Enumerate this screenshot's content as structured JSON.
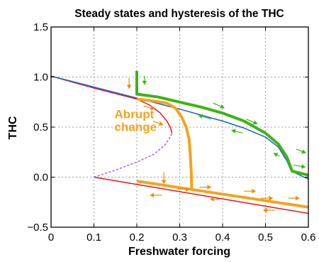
{
  "chart_data": {
    "type": "line",
    "title": "Steady states and hysteresis of the THC",
    "xlabel": "Freshwater forcing",
    "ylabel": "THC",
    "xlim": [
      0,
      0.6
    ],
    "ylim": [
      -0.5,
      1.5
    ],
    "xticks": [
      0,
      0.1,
      0.2,
      0.3,
      0.4,
      0.5,
      0.6
    ],
    "xtick_labels": [
      "0",
      "0.1",
      "0.2",
      "0.3",
      "0.4",
      "0.5",
      "0.6"
    ],
    "yticks": [
      -0.5,
      0,
      0.5,
      1.0,
      1.5
    ],
    "ytick_labels": [
      "−0.5",
      "0.0",
      "0.5",
      "1.0",
      "1.5"
    ],
    "grid": true,
    "colors": {
      "red": "#e8141e",
      "blue": "#1f5fd0",
      "purple": "#a857e6",
      "orange": "#f5a31a",
      "green": "#3cb414",
      "arrow_orange": "#f08c00",
      "annotation": "#f5a31a"
    },
    "series": [
      {
        "color": "red",
        "width": 1.5,
        "dash": false,
        "points": [
          [
            0,
            1.01
          ],
          [
            0.05,
            0.95
          ],
          [
            0.1,
            0.89
          ],
          [
            0.15,
            0.835
          ],
          [
            0.2,
            0.78
          ],
          [
            0.23,
            0.72
          ],
          [
            0.255,
            0.64
          ],
          [
            0.27,
            0.56
          ],
          [
            0.278,
            0.5
          ],
          [
            0.282,
            0.44
          ]
        ]
      },
      {
        "color": "red",
        "width": 1.5,
        "dash": false,
        "points": [
          [
            0.1,
            0.0
          ],
          [
            0.2,
            -0.072
          ],
          [
            0.3,
            -0.145
          ],
          [
            0.4,
            -0.217
          ],
          [
            0.5,
            -0.29
          ],
          [
            0.6,
            -0.362
          ]
        ]
      },
      {
        "color": "purple",
        "width": 1.5,
        "dash": true,
        "points": [
          [
            0.1,
            0.0
          ],
          [
            0.15,
            0.07
          ],
          [
            0.2,
            0.15
          ],
          [
            0.24,
            0.23
          ],
          [
            0.265,
            0.32
          ],
          [
            0.278,
            0.4
          ],
          [
            0.282,
            0.44
          ]
        ]
      },
      {
        "color": "blue",
        "width": 1.5,
        "dash": false,
        "points": [
          [
            0,
            1.01
          ],
          [
            0.1,
            0.9
          ],
          [
            0.2,
            0.79
          ],
          [
            0.3,
            0.68
          ],
          [
            0.4,
            0.56
          ],
          [
            0.45,
            0.49
          ],
          [
            0.5,
            0.4
          ],
          [
            0.53,
            0.3
          ],
          [
            0.55,
            0.16
          ],
          [
            0.56,
            0.06
          ],
          [
            0.6,
            -0.02
          ]
        ]
      },
      {
        "color": "orange",
        "width": 4,
        "dash": false,
        "points": [
          [
            0.2,
            0.78
          ],
          [
            0.24,
            0.76
          ],
          [
            0.27,
            0.74
          ],
          [
            0.29,
            0.69
          ],
          [
            0.305,
            0.6
          ],
          [
            0.315,
            0.5
          ],
          [
            0.322,
            0.38
          ],
          [
            0.325,
            0.2
          ],
          [
            0.327,
            0.05
          ],
          [
            0.328,
            -0.12
          ]
        ]
      },
      {
        "color": "orange",
        "width": 4,
        "dash": false,
        "points": [
          [
            0.2,
            -0.04
          ],
          [
            0.6,
            -0.3
          ]
        ]
      },
      {
        "color": "green",
        "width": 4,
        "dash": false,
        "points": [
          [
            0.2,
            1.06
          ],
          [
            0.2,
            0.83
          ],
          [
            0.25,
            0.8
          ],
          [
            0.3,
            0.75
          ],
          [
            0.35,
            0.7
          ],
          [
            0.4,
            0.64
          ],
          [
            0.45,
            0.56
          ],
          [
            0.5,
            0.44
          ],
          [
            0.53,
            0.33
          ],
          [
            0.55,
            0.2
          ],
          [
            0.562,
            0.06
          ],
          [
            0.6,
            0.02
          ]
        ]
      }
    ],
    "arrows": [
      {
        "from": [
          0.182,
          0.99
        ],
        "to": [
          0.182,
          0.88
        ],
        "color": "arrow_orange"
      },
      {
        "from": [
          0.218,
          1.01
        ],
        "to": [
          0.218,
          0.92
        ],
        "color": "green"
      },
      {
        "from": [
          0.216,
          0.71
        ],
        "to": [
          0.242,
          0.68
        ],
        "color": "arrow_orange"
      },
      {
        "from": [
          0.238,
          0.56
        ],
        "to": [
          0.262,
          0.52
        ],
        "color": "arrow_orange"
      },
      {
        "from": [
          0.263,
          0.05
        ],
        "to": [
          0.263,
          -0.07
        ],
        "color": "arrow_orange"
      },
      {
        "from": [
          0.373,
          0.58
        ],
        "to": [
          0.343,
          0.62
        ],
        "color": "green"
      },
      {
        "from": [
          0.378,
          0.74
        ],
        "to": [
          0.405,
          0.69
        ],
        "color": "green"
      },
      {
        "from": [
          0.447,
          0.44
        ],
        "to": [
          0.42,
          0.47
        ],
        "color": "green"
      },
      {
        "from": [
          0.455,
          0.58
        ],
        "to": [
          0.482,
          0.53
        ],
        "color": "green"
      },
      {
        "from": [
          0.533,
          0.21
        ],
        "to": [
          0.518,
          0.24
        ],
        "color": "green"
      },
      {
        "from": [
          0.572,
          0.28
        ],
        "to": [
          0.595,
          0.24
        ],
        "color": "green"
      },
      {
        "from": [
          0.566,
          0.12
        ],
        "to": [
          0.594,
          0.1
        ],
        "color": "green"
      },
      {
        "from": [
          0.296,
          -0.12
        ],
        "to": [
          0.324,
          -0.12
        ],
        "color": "arrow_orange"
      },
      {
        "from": [
          0.346,
          -0.1
        ],
        "to": [
          0.374,
          -0.1
        ],
        "color": "arrow_orange"
      },
      {
        "from": [
          0.396,
          -0.22
        ],
        "to": [
          0.37,
          -0.22
        ],
        "color": "arrow_orange"
      },
      {
        "from": [
          0.45,
          -0.14
        ],
        "to": [
          0.478,
          -0.14
        ],
        "color": "arrow_orange"
      },
      {
        "from": [
          0.49,
          -0.21
        ],
        "to": [
          0.518,
          -0.21
        ],
        "color": "arrow_orange"
      },
      {
        "from": [
          0.553,
          -0.21
        ],
        "to": [
          0.58,
          -0.21
        ],
        "color": "arrow_orange"
      },
      {
        "from": [
          0.522,
          -0.33
        ],
        "to": [
          0.494,
          -0.33
        ],
        "color": "arrow_orange"
      },
      {
        "from": [
          0.258,
          -0.18
        ],
        "to": [
          0.23,
          -0.18
        ],
        "color": "arrow_orange"
      }
    ],
    "annotation": {
      "lines": [
        "Abrupt",
        "change"
      ],
      "x": 0.148,
      "y": 0.59
    }
  }
}
